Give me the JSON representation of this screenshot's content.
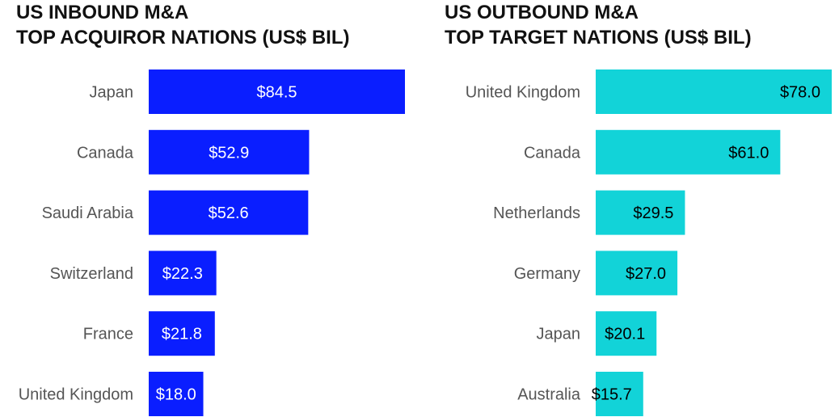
{
  "chart_data": [
    {
      "type": "bar",
      "orientation": "horizontal",
      "title": [
        "US INBOUND M&A",
        "TOP ACQUIROR NATIONS (US$ BIL)"
      ],
      "categories": [
        "Japan",
        "Canada",
        "Saudi Arabia",
        "Switzerland",
        "France",
        "United Kingdom"
      ],
      "values": [
        84.5,
        52.9,
        52.6,
        22.3,
        21.8,
        18.0
      ],
      "labels": [
        "$84.5",
        "$52.9",
        "$52.6",
        "$22.3",
        "$21.8",
        "$18.0"
      ],
      "color": "#0a1eff",
      "label_color": "#ffffff",
      "grid": false
    },
    {
      "type": "bar",
      "orientation": "horizontal",
      "title": [
        "US OUTBOUND M&A",
        "TOP TARGET NATIONS (US$ BIL)"
      ],
      "categories": [
        "United Kingdom",
        "Canada",
        "Netherlands",
        "Germany",
        "Japan",
        "Australia"
      ],
      "values": [
        78.0,
        61.0,
        29.5,
        27.0,
        20.1,
        15.7
      ],
      "labels": [
        "$78.0",
        "$61.0",
        "$29.5",
        "$27.0",
        "$20.1",
        "$15.7"
      ],
      "color": "#12d3d8",
      "label_color": "#000000",
      "grid": false
    }
  ]
}
